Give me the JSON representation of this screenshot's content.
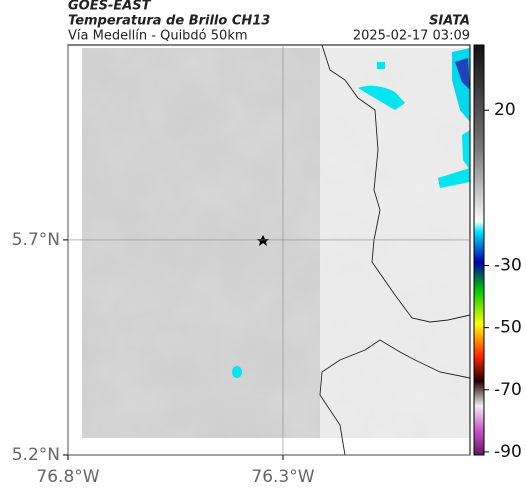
{
  "header": {
    "satellite": "GOES-EAST",
    "product": "Temperatura de Brillo CH13",
    "region": "Vía Medellín - Quibdó 50km",
    "source": "SIATA",
    "timestamp": "2025-02-17 03:09"
  },
  "map": {
    "xlim": [
      -76.8,
      -75.865
    ],
    "ylim": [
      5.2,
      6.153
    ],
    "grid": true,
    "xticks": [
      {
        "value": -76.8,
        "label": "76.8°W"
      },
      {
        "value": -76.3,
        "label": "76.3°W"
      }
    ],
    "yticks": [
      {
        "value": 5.2,
        "label": "5.2°N"
      },
      {
        "value": 5.7,
        "label": "5.7°N"
      }
    ]
  },
  "colorbar": {
    "clim": [
      -91,
      41
    ],
    "ticks": [
      20,
      -30,
      -50,
      -70,
      -90
    ]
  }
}
